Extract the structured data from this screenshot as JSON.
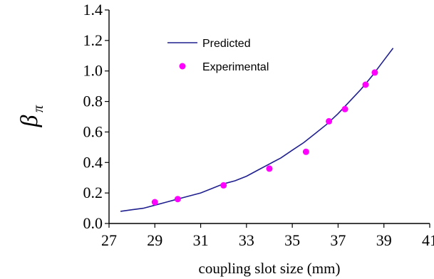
{
  "chart_data": {
    "type": "line",
    "xlabel": "coupling slot size (mm)",
    "ylabel": "β",
    "ylabel_subscript": "π",
    "xlim": [
      27,
      41
    ],
    "ylim": [
      0.0,
      1.4
    ],
    "x_ticks": [
      27,
      29,
      31,
      33,
      35,
      37,
      39,
      41
    ],
    "y_ticks": [
      0.0,
      0.2,
      0.4,
      0.6,
      0.8,
      1.0,
      1.2,
      1.4
    ],
    "y_tick_labels": [
      "0.0",
      "0.2",
      "0.4",
      "0.6",
      "0.8",
      "1.0",
      "1.2",
      "1.4"
    ],
    "x_tick_labels": [
      "27",
      "29",
      "31",
      "33",
      "35",
      "37",
      "39",
      "41"
    ],
    "grid": false,
    "legend_position": "top-left",
    "series": [
      {
        "name": "Predicted",
        "kind": "line",
        "color": "#1f1f8f",
        "x": [
          27.5,
          28.0,
          28.5,
          29.0,
          29.5,
          30.0,
          30.5,
          31.0,
          31.5,
          32.0,
          32.5,
          33.0,
          33.5,
          34.0,
          34.5,
          35.0,
          35.5,
          36.0,
          36.5,
          37.0,
          37.5,
          38.0,
          38.5,
          39.0,
          39.4
        ],
        "y": [
          0.08,
          0.09,
          0.1,
          0.12,
          0.14,
          0.16,
          0.18,
          0.2,
          0.23,
          0.26,
          0.28,
          0.31,
          0.35,
          0.39,
          0.43,
          0.48,
          0.53,
          0.59,
          0.65,
          0.72,
          0.8,
          0.88,
          0.97,
          1.07,
          1.15
        ]
      },
      {
        "name": "Experimental",
        "kind": "scatter",
        "color": "#ff00ff",
        "x": [
          29.0,
          30.0,
          32.0,
          34.0,
          35.6,
          36.6,
          37.3,
          38.2,
          38.6
        ],
        "y": [
          0.14,
          0.16,
          0.25,
          0.36,
          0.47,
          0.67,
          0.75,
          0.91,
          0.99
        ]
      }
    ]
  }
}
